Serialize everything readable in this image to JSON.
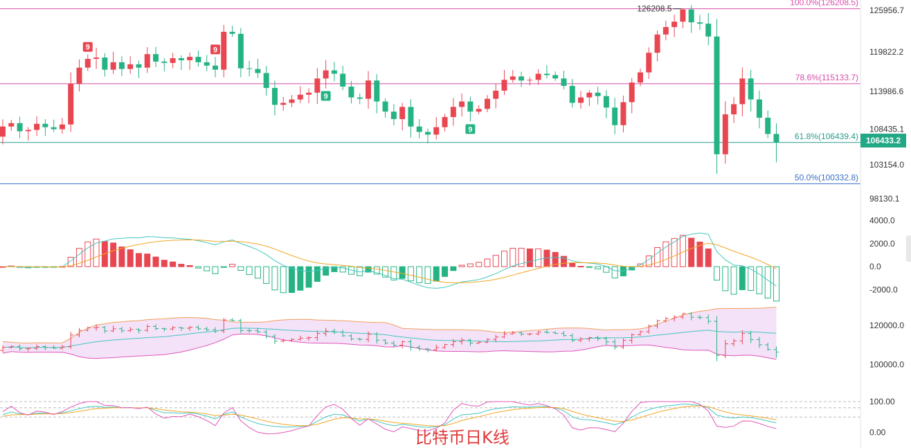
{
  "caption": "比特币日K线",
  "chart_data": [
    {
      "type": "candlestick",
      "name": "price",
      "ylim": [
        97000,
        127500
      ],
      "y_ticks": [
        "125956.7",
        "119822.2",
        "113986.6",
        "108435.1",
        "103154.0",
        "98130.1"
      ],
      "y_tick_values": [
        125956.7,
        119822.2,
        113986.6,
        108435.1,
        103154.0,
        98130.1
      ],
      "last_price": "106433.2",
      "last_price_value": 106433.2,
      "high_label": "126208.5",
      "high_value": 126208.5,
      "fib_levels": [
        {
          "label": "100.0%(126208.5)",
          "value": 126208.5,
          "color": "#d64ca8"
        },
        {
          "label": "78.6%(115133.7)",
          "value": 115133.7,
          "color": "#d64ca8"
        },
        {
          "label": "61.8%(106439.4)",
          "value": 106439.4,
          "color": "#2b9a8c"
        },
        {
          "label": "50.0%(100332.8)",
          "value": 100332.8,
          "color": "#3a6fc4"
        }
      ],
      "td_markers": [
        {
          "text": "9",
          "index": 10,
          "type": "sell"
        },
        {
          "text": "9",
          "index": 25,
          "type": "sell"
        },
        {
          "text": "9",
          "index": 38,
          "type": "buy"
        },
        {
          "text": "9",
          "index": 55,
          "type": "buy"
        }
      ],
      "close": [
        108800,
        109300,
        108100,
        108300,
        109200,
        108700,
        108400,
        109100,
        115100,
        117500,
        118800,
        119000,
        117200,
        118300,
        117300,
        118000,
        117500,
        119500,
        118400,
        118200,
        118900,
        118600,
        119100,
        118300,
        117800,
        117200,
        122800,
        122500,
        117400,
        117300,
        116700,
        114500,
        112000,
        112300,
        112800,
        113500,
        113800,
        115900,
        117100,
        116600,
        114700,
        113100,
        112900,
        115600,
        112500,
        111000,
        109900,
        111700,
        108800,
        108000,
        107600,
        108700,
        110200,
        111700,
        112500,
        111000,
        111400,
        112900,
        114100,
        115700,
        116200,
        115600,
        115700,
        116600,
        116400,
        115900,
        114800,
        112300,
        113100,
        113800,
        113300,
        111600,
        109000,
        112400,
        115300,
        116800,
        119700,
        122400,
        123500,
        124300,
        126100,
        124200,
        124000,
        122100,
        104700,
        110600,
        112100,
        115900,
        112800,
        110100,
        107700,
        106433
      ]
    },
    {
      "type": "bar",
      "name": "macd",
      "ylim": [
        -3300,
        4400
      ],
      "y_ticks": [
        "4000.0",
        "2000.0",
        "0.0",
        "-2000.0"
      ],
      "y_tick_values": [
        4000,
        2000,
        0,
        -2000
      ]
    },
    {
      "type": "line",
      "name": "bollinger",
      "ylim": [
        97000,
        128500
      ],
      "y_ticks": [
        "120000.0",
        "100000.0"
      ],
      "y_tick_values": [
        120000,
        100000
      ]
    },
    {
      "type": "line",
      "name": "kdj",
      "ylim": [
        -35,
        100
      ],
      "y_ticks": [
        "0.00",
        "100.00"
      ],
      "y_tick_values": [
        0,
        100
      ]
    }
  ],
  "colors": {
    "up": "#e84752",
    "down": "#26b383",
    "macd_dif": "#44c6c0",
    "macd_dea": "#f2a623",
    "boll_upper": "#f2a05c",
    "boll_mid": "#44c6c0",
    "boll_lower": "#e056b8",
    "boll_fill": "#f3e2f8",
    "kdj_k": "#44c6c0",
    "kdj_d": "#f2a623",
    "kdj_j": "#e056b8"
  }
}
